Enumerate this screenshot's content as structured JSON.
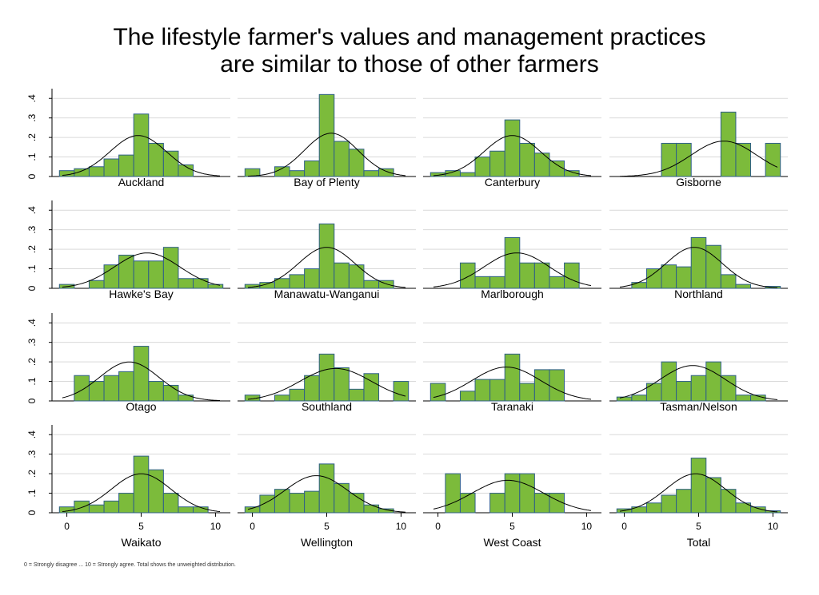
{
  "title_lines": [
    "The lifestyle farmer's values and management practices",
    "are similar to those of other farmers"
  ],
  "note": "0 = Strongly disagree ... 10 = Strongly agree. Total shows the unweighted distribution.",
  "colors": {
    "bar_fill": "#7cbb3b",
    "bar_stroke": "#2f5f89",
    "grid": "#d9d9d9"
  },
  "chart_data": {
    "type": "bar",
    "subtype": "histogram small multiples with normal density overlay",
    "title": "The lifestyle farmer's values and management practices are similar to those of other farmers",
    "xticks": [
      0,
      5,
      10
    ],
    "xlim": [
      -1,
      11
    ],
    "ylim": [
      0,
      0.45
    ],
    "yticks": [
      "0",
      ".1",
      ".2",
      ".3",
      ".4"
    ],
    "grid": true,
    "panels": [
      {
        "name": "Auckland",
        "x": [
          0,
          1,
          2,
          3,
          4,
          5,
          6,
          7,
          8
        ],
        "y": [
          0.03,
          0.04,
          0.05,
          0.09,
          0.11,
          0.32,
          0.17,
          0.13,
          0.06
        ],
        "mean": 4.8,
        "sd": 1.9
      },
      {
        "name": "Bay of Plenty",
        "x": [
          0,
          1,
          2,
          3,
          4,
          5,
          6,
          7,
          8,
          9
        ],
        "y": [
          0.04,
          0.0,
          0.05,
          0.03,
          0.08,
          0.42,
          0.18,
          0.14,
          0.03,
          0.04
        ],
        "mean": 5.3,
        "sd": 1.8
      },
      {
        "name": "Canterbury",
        "x": [
          0,
          1,
          2,
          3,
          4,
          5,
          6,
          7,
          8,
          9
        ],
        "y": [
          0.02,
          0.03,
          0.02,
          0.1,
          0.13,
          0.29,
          0.17,
          0.12,
          0.08,
          0.03
        ],
        "mean": 5.0,
        "sd": 1.9
      },
      {
        "name": "Gisborne",
        "x": [
          3,
          4,
          5,
          6,
          7,
          8,
          9,
          10
        ],
        "y": [
          0.17,
          0.17,
          0.0,
          0.0,
          0.33,
          0.17,
          0.0,
          0.17
        ],
        "mean": 6.7,
        "sd": 2.2
      },
      {
        "name": "Hawke's Bay",
        "x": [
          0,
          1,
          2,
          3,
          4,
          5,
          6,
          7,
          8,
          9,
          10
        ],
        "y": [
          0.02,
          0.0,
          0.04,
          0.12,
          0.17,
          0.14,
          0.14,
          0.21,
          0.05,
          0.05,
          0.02
        ],
        "mean": 5.4,
        "sd": 2.2
      },
      {
        "name": "Manawatu-Wanganui",
        "x": [
          0,
          1,
          2,
          3,
          4,
          5,
          6,
          7,
          8,
          9
        ],
        "y": [
          0.02,
          0.03,
          0.05,
          0.07,
          0.1,
          0.33,
          0.13,
          0.12,
          0.04,
          0.04
        ],
        "mean": 5.0,
        "sd": 1.9
      },
      {
        "name": "Marlborough",
        "x": [
          2,
          3,
          4,
          5,
          6,
          7,
          8,
          9
        ],
        "y": [
          0.13,
          0.06,
          0.06,
          0.26,
          0.13,
          0.13,
          0.06,
          0.13
        ],
        "mean": 5.3,
        "sd": 2.2
      },
      {
        "name": "Northland",
        "x": [
          0,
          1,
          2,
          3,
          4,
          5,
          6,
          7,
          8,
          9,
          10
        ],
        "y": [
          0.0,
          0.03,
          0.1,
          0.12,
          0.11,
          0.26,
          0.22,
          0.07,
          0.02,
          0.0,
          0.01
        ],
        "mean": 4.7,
        "sd": 1.9
      },
      {
        "name": "Otago",
        "x": [
          0,
          1,
          2,
          3,
          4,
          5,
          6,
          7,
          8
        ],
        "y": [
          0.0,
          0.13,
          0.1,
          0.13,
          0.15,
          0.28,
          0.1,
          0.08,
          0.03
        ],
        "mean": 4.2,
        "sd": 2.0
      },
      {
        "name": "Southland",
        "x": [
          0,
          1,
          2,
          3,
          4,
          5,
          6,
          7,
          8,
          9,
          10
        ],
        "y": [
          0.03,
          0.0,
          0.03,
          0.06,
          0.13,
          0.24,
          0.17,
          0.06,
          0.14,
          0.0,
          0.1
        ],
        "mean": 5.6,
        "sd": 2.4
      },
      {
        "name": "Taranaki",
        "x": [
          0,
          1,
          2,
          3,
          4,
          5,
          6,
          7,
          8
        ],
        "y": [
          0.09,
          0.0,
          0.05,
          0.11,
          0.11,
          0.24,
          0.09,
          0.16,
          0.16
        ],
        "mean": 4.6,
        "sd": 2.3
      },
      {
        "name": "Tasman/Nelson",
        "x": [
          0,
          1,
          2,
          3,
          4,
          5,
          6,
          7,
          8,
          9
        ],
        "y": [
          0.02,
          0.03,
          0.09,
          0.2,
          0.1,
          0.13,
          0.2,
          0.13,
          0.03,
          0.03
        ],
        "mean": 4.6,
        "sd": 2.2
      },
      {
        "name": "Waikato",
        "x": [
          0,
          1,
          2,
          3,
          4,
          5,
          6,
          7,
          8,
          9
        ],
        "y": [
          0.03,
          0.06,
          0.04,
          0.06,
          0.1,
          0.29,
          0.22,
          0.1,
          0.03,
          0.03
        ],
        "mean": 5.0,
        "sd": 2.0
      },
      {
        "name": "Wellington",
        "x": [
          0,
          1,
          2,
          3,
          4,
          5,
          6,
          7,
          8,
          9
        ],
        "y": [
          0.03,
          0.09,
          0.12,
          0.1,
          0.11,
          0.25,
          0.15,
          0.1,
          0.04,
          0.02
        ],
        "mean": 4.3,
        "sd": 2.1
      },
      {
        "name": "West Coast",
        "x": [
          1,
          2,
          3,
          4,
          5,
          6,
          7,
          8
        ],
        "y": [
          0.2,
          0.1,
          0.0,
          0.1,
          0.2,
          0.2,
          0.1,
          0.1
        ],
        "mean": 4.7,
        "sd": 2.4
      },
      {
        "name": "Total",
        "x": [
          0,
          1,
          2,
          3,
          4,
          5,
          6,
          7,
          8,
          9,
          10
        ],
        "y": [
          0.02,
          0.03,
          0.05,
          0.09,
          0.12,
          0.28,
          0.18,
          0.12,
          0.05,
          0.03,
          0.01
        ],
        "mean": 4.8,
        "sd": 2.0
      }
    ]
  }
}
